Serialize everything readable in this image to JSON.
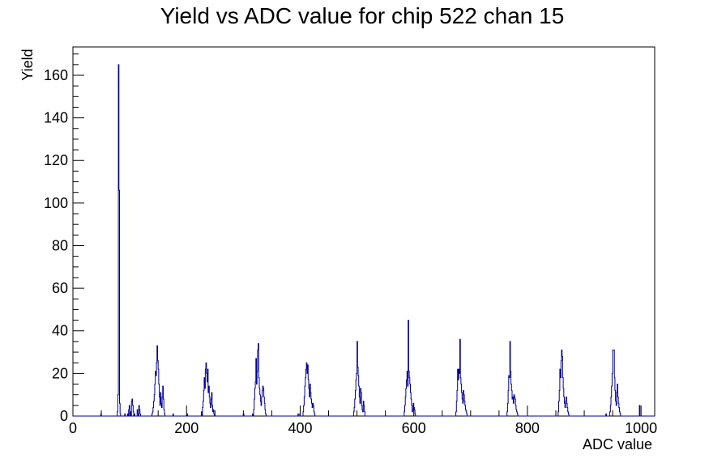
{
  "chart_data": {
    "type": "histogram",
    "title": "Yield vs ADC value for chip 522 chan 15",
    "xlabel": "ADC value",
    "ylabel": "Yield",
    "xlim": [
      0,
      1024
    ],
    "ylim": [
      0,
      173.3
    ],
    "x_ticks": [
      0,
      200,
      400,
      600,
      800,
      1000
    ],
    "y_ticks": [
      0,
      20,
      40,
      60,
      80,
      100,
      120,
      140,
      160
    ],
    "grid": false,
    "line_color": "#000099",
    "bins": [
      [
        49,
        1
      ],
      [
        78,
        2
      ],
      [
        79,
        10
      ],
      [
        80,
        165
      ],
      [
        81,
        106
      ],
      [
        82,
        6
      ],
      [
        83,
        1
      ],
      [
        91,
        1
      ],
      [
        96,
        1
      ],
      [
        98,
        3
      ],
      [
        99,
        5
      ],
      [
        101,
        2
      ],
      [
        103,
        7
      ],
      [
        104,
        8
      ],
      [
        105,
        5
      ],
      [
        106,
        2
      ],
      [
        108,
        1
      ],
      [
        113,
        3
      ],
      [
        114,
        1
      ],
      [
        116,
        5
      ],
      [
        117,
        3
      ],
      [
        118,
        1
      ],
      [
        139,
        1
      ],
      [
        140,
        2
      ],
      [
        141,
        4
      ],
      [
        142,
        7
      ],
      [
        143,
        10
      ],
      [
        144,
        15
      ],
      [
        145,
        21
      ],
      [
        146,
        19
      ],
      [
        147,
        25
      ],
      [
        148,
        33
      ],
      [
        149,
        26
      ],
      [
        150,
        22
      ],
      [
        151,
        15
      ],
      [
        152,
        9
      ],
      [
        153,
        5
      ],
      [
        154,
        11
      ],
      [
        155,
        6
      ],
      [
        156,
        4
      ],
      [
        157,
        9
      ],
      [
        158,
        14
      ],
      [
        159,
        8
      ],
      [
        160,
        3
      ],
      [
        161,
        1
      ],
      [
        176,
        1
      ],
      [
        201,
        1
      ],
      [
        226,
        2
      ],
      [
        228,
        4
      ],
      [
        229,
        7
      ],
      [
        230,
        12
      ],
      [
        231,
        18
      ],
      [
        232,
        13
      ],
      [
        233,
        22
      ],
      [
        234,
        25
      ],
      [
        235,
        20
      ],
      [
        236,
        16
      ],
      [
        237,
        22
      ],
      [
        238,
        11
      ],
      [
        239,
        14
      ],
      [
        240,
        9
      ],
      [
        241,
        6
      ],
      [
        242,
        4
      ],
      [
        243,
        8
      ],
      [
        244,
        11
      ],
      [
        245,
        5
      ],
      [
        246,
        2
      ],
      [
        247,
        3
      ],
      [
        248,
        1
      ],
      [
        300,
        1
      ],
      [
        316,
        1
      ],
      [
        318,
        3
      ],
      [
        319,
        8
      ],
      [
        320,
        13
      ],
      [
        321,
        16
      ],
      [
        322,
        27
      ],
      [
        323,
        15
      ],
      [
        324,
        21
      ],
      [
        325,
        31
      ],
      [
        326,
        34
      ],
      [
        327,
        18
      ],
      [
        328,
        13
      ],
      [
        329,
        10
      ],
      [
        330,
        7
      ],
      [
        331,
        5
      ],
      [
        332,
        9
      ],
      [
        333,
        12
      ],
      [
        334,
        14
      ],
      [
        335,
        13
      ],
      [
        336,
        9
      ],
      [
        337,
        6
      ],
      [
        338,
        3
      ],
      [
        339,
        1
      ],
      [
        396,
        1
      ],
      [
        397,
        1
      ],
      [
        405,
        2
      ],
      [
        406,
        5
      ],
      [
        407,
        9
      ],
      [
        408,
        14
      ],
      [
        409,
        18
      ],
      [
        410,
        22
      ],
      [
        411,
        25
      ],
      [
        412,
        20
      ],
      [
        413,
        24
      ],
      [
        414,
        17
      ],
      [
        415,
        13
      ],
      [
        416,
        9
      ],
      [
        417,
        15
      ],
      [
        418,
        11
      ],
      [
        419,
        8
      ],
      [
        420,
        6
      ],
      [
        421,
        4
      ],
      [
        422,
        6
      ],
      [
        423,
        5
      ],
      [
        424,
        2
      ],
      [
        425,
        1
      ],
      [
        494,
        2
      ],
      [
        495,
        4
      ],
      [
        496,
        8
      ],
      [
        497,
        12
      ],
      [
        498,
        17
      ],
      [
        499,
        20
      ],
      [
        500,
        35
      ],
      [
        501,
        23
      ],
      [
        502,
        19
      ],
      [
        503,
        14
      ],
      [
        504,
        9
      ],
      [
        505,
        6
      ],
      [
        506,
        13
      ],
      [
        507,
        11
      ],
      [
        508,
        5
      ],
      [
        509,
        3
      ],
      [
        510,
        2
      ],
      [
        511,
        7
      ],
      [
        512,
        5
      ],
      [
        513,
        2
      ],
      [
        583,
        2
      ],
      [
        584,
        5
      ],
      [
        585,
        9
      ],
      [
        586,
        13
      ],
      [
        587,
        17
      ],
      [
        588,
        21
      ],
      [
        589,
        14
      ],
      [
        590,
        45
      ],
      [
        591,
        21
      ],
      [
        592,
        18
      ],
      [
        593,
        15
      ],
      [
        594,
        11
      ],
      [
        595,
        8
      ],
      [
        596,
        5
      ],
      [
        597,
        2
      ],
      [
        598,
        3
      ],
      [
        599,
        6
      ],
      [
        600,
        4
      ],
      [
        601,
        3
      ],
      [
        602,
        1
      ],
      [
        674,
        2
      ],
      [
        675,
        7
      ],
      [
        676,
        12
      ],
      [
        677,
        22
      ],
      [
        678,
        17
      ],
      [
        679,
        22
      ],
      [
        680,
        20
      ],
      [
        681,
        36
      ],
      [
        682,
        18
      ],
      [
        683,
        15
      ],
      [
        684,
        11
      ],
      [
        685,
        8
      ],
      [
        686,
        6
      ],
      [
        687,
        12
      ],
      [
        688,
        10
      ],
      [
        689,
        7
      ],
      [
        690,
        5
      ],
      [
        691,
        3
      ],
      [
        692,
        2
      ],
      [
        693,
        1
      ],
      [
        764,
        2
      ],
      [
        765,
        6
      ],
      [
        766,
        12
      ],
      [
        767,
        19
      ],
      [
        768,
        18
      ],
      [
        769,
        35
      ],
      [
        770,
        21
      ],
      [
        771,
        15
      ],
      [
        772,
        12
      ],
      [
        773,
        8
      ],
      [
        774,
        9
      ],
      [
        775,
        6
      ],
      [
        776,
        10
      ],
      [
        777,
        9
      ],
      [
        778,
        8
      ],
      [
        779,
        5
      ],
      [
        780,
        3
      ],
      [
        781,
        2
      ],
      [
        782,
        1
      ],
      [
        854,
        2
      ],
      [
        855,
        7
      ],
      [
        856,
        12
      ],
      [
        857,
        22
      ],
      [
        858,
        18
      ],
      [
        859,
        26
      ],
      [
        860,
        31
      ],
      [
        861,
        28
      ],
      [
        862,
        18
      ],
      [
        863,
        13
      ],
      [
        864,
        9
      ],
      [
        865,
        6
      ],
      [
        866,
        4
      ],
      [
        867,
        7
      ],
      [
        868,
        9
      ],
      [
        869,
        6
      ],
      [
        870,
        4
      ],
      [
        871,
        2
      ],
      [
        872,
        1
      ],
      [
        938,
        1
      ],
      [
        945,
        2
      ],
      [
        946,
        5
      ],
      [
        947,
        9
      ],
      [
        948,
        14
      ],
      [
        949,
        20
      ],
      [
        950,
        31
      ],
      [
        951,
        31
      ],
      [
        952,
        31
      ],
      [
        953,
        18
      ],
      [
        954,
        12
      ],
      [
        955,
        7
      ],
      [
        956,
        5
      ],
      [
        957,
        11
      ],
      [
        958,
        15
      ],
      [
        959,
        9
      ],
      [
        960,
        6
      ],
      [
        961,
        4
      ],
      [
        962,
        2
      ],
      [
        963,
        1
      ],
      [
        997,
        5
      ]
    ]
  }
}
